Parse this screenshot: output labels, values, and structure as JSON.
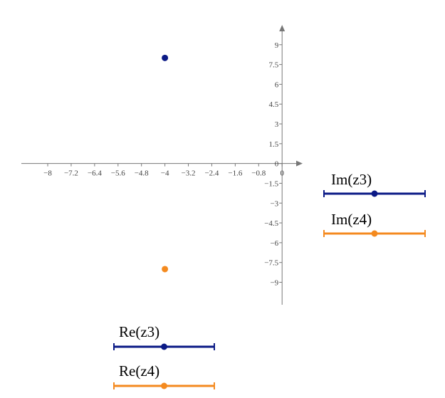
{
  "chart_data": {
    "type": "scatter",
    "xlim": [
      -8.9,
      0.7
    ],
    "ylim": [
      -10.7,
      10.5
    ],
    "xticks": [
      {
        "value": -8,
        "label": "−8"
      },
      {
        "value": -7.2,
        "label": "−7.2"
      },
      {
        "value": -6.4,
        "label": "−6.4"
      },
      {
        "value": -5.6,
        "label": "−5.6"
      },
      {
        "value": -4.8,
        "label": "−4.8"
      },
      {
        "value": -4,
        "label": "−4"
      },
      {
        "value": -3.2,
        "label": "−3.2"
      },
      {
        "value": -2.4,
        "label": "−2.4"
      },
      {
        "value": -1.6,
        "label": "−1.6"
      },
      {
        "value": -0.8,
        "label": "−0.8"
      },
      0
    ],
    "yticks": [
      9,
      7.5,
      6,
      4.5,
      3,
      1.5,
      0,
      {
        "value": -1.5,
        "label": "−1.5"
      },
      {
        "value": -3,
        "label": "−3"
      },
      {
        "value": -4.5,
        "label": "−4.5"
      },
      {
        "value": -6,
        "label": "−6"
      },
      {
        "value": -7.5,
        "label": "−7.5"
      },
      {
        "value": -9,
        "label": "−9"
      }
    ],
    "series": [
      {
        "color": "#0b1a86",
        "x": [
          -4
        ],
        "values": [
          8
        ],
        "x_label": "Re(z3)",
        "y_label": "Im(z3)"
      },
      {
        "color": "#f48a1f",
        "x": [
          -4
        ],
        "values": [
          -8
        ],
        "x_label": "Re(z4)",
        "y_label": "Im(z4)"
      }
    ]
  }
}
